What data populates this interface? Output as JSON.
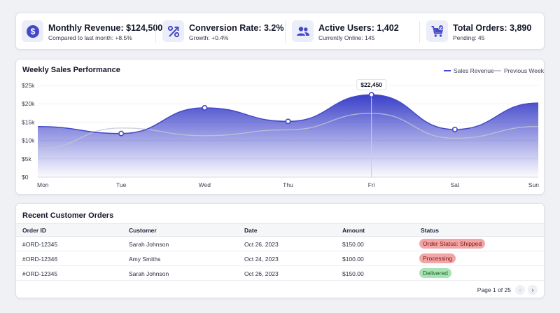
{
  "kpis": [
    {
      "title": "Monthly Revenue: $124,500",
      "sub": "Compared to last month: +8.5%",
      "icon": "dollar-icon"
    },
    {
      "title": "Conversion Rate: 3.2%",
      "sub": "Growth: +0.4%",
      "icon": "percent-icon"
    },
    {
      "title": "Active Users: 1,402",
      "sub": "Currently Online: 145",
      "icon": "users-icon"
    },
    {
      "title": "Total Orders: 3,890",
      "sub": "Pending: 45",
      "icon": "cart-icon"
    }
  ],
  "colors": {
    "accent": "#4449c8",
    "accent_light": "#ebedf9",
    "previous_line": "#c4c6d2",
    "badge_red_bg": "#f3a6a6",
    "badge_red_text": "#7a1717",
    "badge_green_bg": "#a7e3b4",
    "badge_green_text": "#1d5d2b"
  },
  "chart_data": {
    "type": "area",
    "title": "Weekly Sales Performance",
    "categories": [
      "Mon",
      "Tue",
      "Wed",
      "Thu",
      "Fri",
      "Sat",
      "Sun"
    ],
    "series": [
      {
        "name": "Sales Revenue",
        "values": [
          13800,
          11900,
          18900,
          15200,
          22450,
          13000,
          20200
        ],
        "markers": [
          false,
          true,
          true,
          true,
          true,
          true,
          false
        ]
      },
      {
        "name": "Previous Week",
        "values": [
          7700,
          13400,
          11300,
          12900,
          17400,
          10600,
          13800
        ]
      }
    ],
    "y_ticks": [
      "$0",
      "$5k",
      "$10k",
      "$15k",
      "$20k",
      "$25k"
    ],
    "ylim": [
      0,
      25000
    ],
    "tooltip": {
      "category": "Fri",
      "label": "$22,450"
    },
    "legend_position": "top-right",
    "grid": true
  },
  "orders": {
    "title": "Recent Customer Orders",
    "columns": [
      "Order ID",
      "Customer",
      "Date",
      "Amount",
      "Status"
    ],
    "rows": [
      {
        "id": "#ORD-12345",
        "customer": "Sarah Johnson",
        "date": "Oct 26, 2023",
        "amount": "$150.00",
        "status": "Order Status: Shipped",
        "tone": "red"
      },
      {
        "id": "#ORD-12346",
        "customer": "Amy Smiths",
        "date": "Oct 24, 2023",
        "amount": "$100.00",
        "status": "Processing",
        "tone": "red"
      },
      {
        "id": "#ORD-12345",
        "customer": "Sarah Johnson",
        "date": "Oct 26, 2023",
        "amount": "$150.00",
        "status": "Delivered",
        "tone": "green"
      }
    ],
    "pagination": {
      "label": "Page 1 of 25",
      "prev_icon": "chevron-left-icon",
      "next_icon": "chevron-right-icon"
    }
  }
}
